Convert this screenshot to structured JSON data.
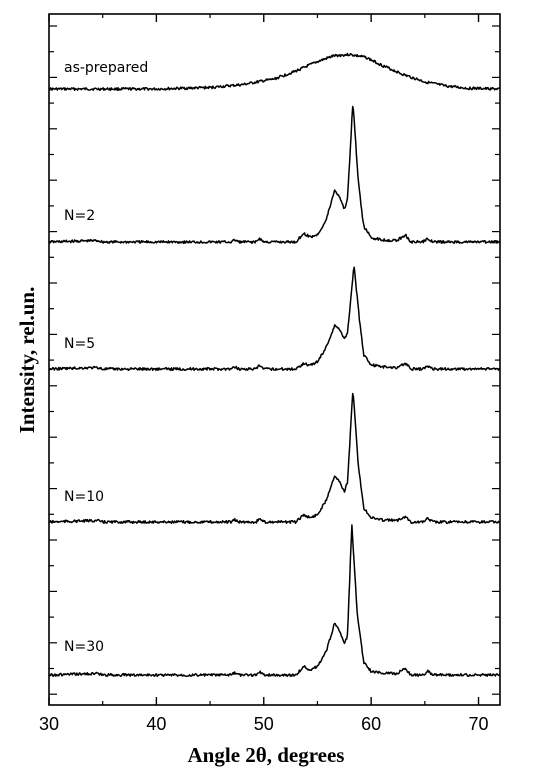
{
  "chart_data": {
    "type": "line",
    "xlabel": "Angle 2θ, degrees",
    "ylabel": "Intensity, rel.un.",
    "xlim": [
      30,
      72
    ],
    "x_ticks": [
      30,
      40,
      50,
      60,
      70
    ],
    "y_ticks_shown": false,
    "stacked_offset_traces": true,
    "grid": false,
    "series": [
      {
        "name": "as-prepared",
        "baseline": 0,
        "points": [
          [
            30,
            0
          ],
          [
            40,
            0
          ],
          [
            45,
            0.02
          ],
          [
            48,
            0.06
          ],
          [
            51,
            0.14
          ],
          [
            53,
            0.25
          ],
          [
            55,
            0.38
          ],
          [
            56.5,
            0.46
          ],
          [
            58,
            0.48
          ],
          [
            59.5,
            0.44
          ],
          [
            61,
            0.33
          ],
          [
            63,
            0.2
          ],
          [
            65,
            0.1
          ],
          [
            67,
            0.04
          ],
          [
            69,
            0.01
          ],
          [
            72,
            0
          ]
        ]
      },
      {
        "name": "N=2",
        "baseline": 0,
        "points": [
          [
            30,
            0
          ],
          [
            34.5,
            0.02
          ],
          [
            35,
            0
          ],
          [
            47,
            0
          ],
          [
            47.3,
            0.03
          ],
          [
            47.7,
            0
          ],
          [
            49.3,
            0
          ],
          [
            49.6,
            0.05
          ],
          [
            50,
            0
          ],
          [
            53,
            0
          ],
          [
            53.7,
            0.12
          ],
          [
            54.3,
            0.07
          ],
          [
            55,
            0.1
          ],
          [
            55.8,
            0.3
          ],
          [
            56.6,
            0.72
          ],
          [
            57.1,
            0.62
          ],
          [
            57.5,
            0.45
          ],
          [
            57.8,
            0.6
          ],
          [
            58.3,
            1.95
          ],
          [
            58.8,
            0.85
          ],
          [
            59.3,
            0.22
          ],
          [
            60,
            0.06
          ],
          [
            61,
            0.03
          ],
          [
            62.4,
            0.02
          ],
          [
            63.2,
            0.1
          ],
          [
            63.7,
            0
          ],
          [
            64.8,
            0
          ],
          [
            65.3,
            0.05
          ],
          [
            65.8,
            0
          ],
          [
            72,
            0
          ]
        ]
      },
      {
        "name": "N=5",
        "baseline": 0,
        "points": [
          [
            30,
            0
          ],
          [
            34.5,
            0.02
          ],
          [
            35,
            0
          ],
          [
            47,
            0
          ],
          [
            47.3,
            0.03
          ],
          [
            47.7,
            0
          ],
          [
            49.3,
            0
          ],
          [
            49.6,
            0.05
          ],
          [
            50,
            0
          ],
          [
            53,
            0
          ],
          [
            53.7,
            0.08
          ],
          [
            54.3,
            0.05
          ],
          [
            55,
            0.1
          ],
          [
            55.8,
            0.3
          ],
          [
            56.6,
            0.6
          ],
          [
            57.1,
            0.55
          ],
          [
            57.5,
            0.42
          ],
          [
            57.8,
            0.5
          ],
          [
            58.4,
            1.45
          ],
          [
            58.9,
            0.7
          ],
          [
            59.3,
            0.2
          ],
          [
            60,
            0.06
          ],
          [
            61,
            0.03
          ],
          [
            62.4,
            0.02
          ],
          [
            63.2,
            0.08
          ],
          [
            63.7,
            0
          ],
          [
            64.8,
            0
          ],
          [
            65.3,
            0.04
          ],
          [
            65.8,
            0
          ],
          [
            72,
            0
          ]
        ]
      },
      {
        "name": "N=10",
        "baseline": 0,
        "points": [
          [
            30,
            0
          ],
          [
            34.5,
            0.02
          ],
          [
            35,
            0
          ],
          [
            47,
            0
          ],
          [
            47.3,
            0.03
          ],
          [
            47.7,
            0
          ],
          [
            49.3,
            0
          ],
          [
            49.6,
            0.05
          ],
          [
            50,
            0
          ],
          [
            53,
            0
          ],
          [
            53.7,
            0.1
          ],
          [
            54.3,
            0.06
          ],
          [
            55,
            0.1
          ],
          [
            55.8,
            0.3
          ],
          [
            56.6,
            0.65
          ],
          [
            57.1,
            0.55
          ],
          [
            57.5,
            0.42
          ],
          [
            57.8,
            0.55
          ],
          [
            58.3,
            1.85
          ],
          [
            58.8,
            0.8
          ],
          [
            59.3,
            0.2
          ],
          [
            60,
            0.06
          ],
          [
            61,
            0.03
          ],
          [
            62.4,
            0.02
          ],
          [
            63.2,
            0.08
          ],
          [
            63.7,
            0
          ],
          [
            64.8,
            0
          ],
          [
            65.3,
            0.05
          ],
          [
            65.8,
            0
          ],
          [
            72,
            0
          ]
        ]
      },
      {
        "name": "N=30",
        "baseline": 0,
        "points": [
          [
            30,
            0
          ],
          [
            34.5,
            0.02
          ],
          [
            35,
            0
          ],
          [
            47,
            0
          ],
          [
            47.3,
            0.03
          ],
          [
            47.7,
            0
          ],
          [
            49.3,
            0
          ],
          [
            49.6,
            0.05
          ],
          [
            50,
            0
          ],
          [
            53,
            0
          ],
          [
            53.7,
            0.12
          ],
          [
            54.3,
            0.07
          ],
          [
            55,
            0.12
          ],
          [
            55.8,
            0.32
          ],
          [
            56.6,
            0.72
          ],
          [
            57.1,
            0.6
          ],
          [
            57.5,
            0.42
          ],
          [
            57.8,
            0.55
          ],
          [
            58.2,
            2.1
          ],
          [
            58.7,
            0.85
          ],
          [
            59.3,
            0.18
          ],
          [
            60,
            0.05
          ],
          [
            61,
            0.03
          ],
          [
            62.4,
            0.02
          ],
          [
            63.2,
            0.09
          ],
          [
            63.7,
            0
          ],
          [
            64.8,
            0
          ],
          [
            65.3,
            0.05
          ],
          [
            65.8,
            0
          ],
          [
            72,
            0
          ]
        ]
      }
    ]
  }
}
